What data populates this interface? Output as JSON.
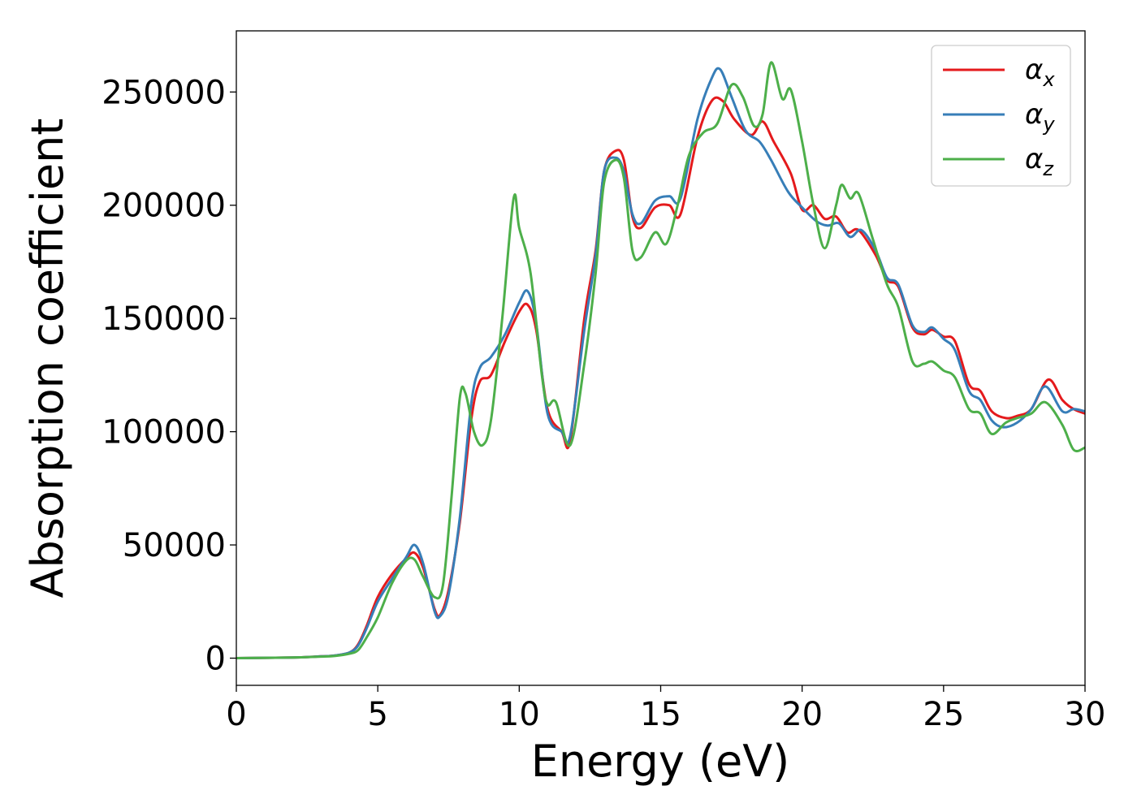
{
  "chart_data": {
    "type": "line",
    "title": "",
    "xlabel": "Energy (eV)",
    "ylabel": "Absorption coefficient",
    "xlim": [
      0,
      30
    ],
    "ylim": [
      -12000,
      277000
    ],
    "xticks": [
      "0",
      "5",
      "10",
      "15",
      "20",
      "25",
      "30"
    ],
    "yticks": [
      "0",
      "50000",
      "100000",
      "150000",
      "200000",
      "250000"
    ],
    "grid": false,
    "legend_position": "top-right",
    "series": [
      {
        "name": "αx",
        "label_base": "α",
        "label_sub": "x",
        "color": "#e41a1c",
        "points": [
          [
            0,
            0
          ],
          [
            2,
            300
          ],
          [
            3,
            800
          ],
          [
            3.5,
            1200
          ],
          [
            4,
            2500
          ],
          [
            4.3,
            6000
          ],
          [
            4.6,
            14000
          ],
          [
            5,
            27000
          ],
          [
            5.5,
            37000
          ],
          [
            6,
            44000
          ],
          [
            6.3,
            46500
          ],
          [
            6.6,
            40000
          ],
          [
            7,
            22000
          ],
          [
            7.2,
            19000
          ],
          [
            7.5,
            30000
          ],
          [
            7.9,
            60000
          ],
          [
            8.3,
            105000
          ],
          [
            8.6,
            122000
          ],
          [
            9,
            125000
          ],
          [
            9.5,
            140000
          ],
          [
            10,
            153000
          ],
          [
            10.3,
            156000
          ],
          [
            10.6,
            145000
          ],
          [
            11,
            110000
          ],
          [
            11.5,
            100000
          ],
          [
            11.8,
            96000
          ],
          [
            12.3,
            150000
          ],
          [
            12.7,
            180000
          ],
          [
            13,
            215000
          ],
          [
            13.4,
            224000
          ],
          [
            13.7,
            220000
          ],
          [
            14,
            195000
          ],
          [
            14.3,
            190000
          ],
          [
            14.8,
            199000
          ],
          [
            15.3,
            200000
          ],
          [
            15.7,
            196000
          ],
          [
            16.3,
            230000
          ],
          [
            16.8,
            246000
          ],
          [
            17.2,
            246000
          ],
          [
            17.6,
            238000
          ],
          [
            18.2,
            231000
          ],
          [
            18.6,
            237000
          ],
          [
            19,
            228000
          ],
          [
            19.6,
            214000
          ],
          [
            20,
            198000
          ],
          [
            20.4,
            200000
          ],
          [
            20.8,
            194000
          ],
          [
            21.2,
            195000
          ],
          [
            21.6,
            188000
          ],
          [
            22,
            189000
          ],
          [
            22.6,
            178000
          ],
          [
            23,
            167000
          ],
          [
            23.4,
            164000
          ],
          [
            23.9,
            146000
          ],
          [
            24.3,
            143000
          ],
          [
            24.6,
            145000
          ],
          [
            25,
            142000
          ],
          [
            25.4,
            140000
          ],
          [
            25.9,
            121000
          ],
          [
            26.3,
            118000
          ],
          [
            26.7,
            109000
          ],
          [
            27.2,
            106000
          ],
          [
            27.6,
            107000
          ],
          [
            28.1,
            110000
          ],
          [
            28.7,
            123000
          ],
          [
            29.2,
            114000
          ],
          [
            29.6,
            110000
          ],
          [
            30,
            108000
          ]
        ]
      },
      {
        "name": "αy",
        "label_base": "α",
        "label_sub": "y",
        "color": "#377eb8",
        "points": [
          [
            0,
            0
          ],
          [
            2,
            300
          ],
          [
            3,
            800
          ],
          [
            3.5,
            1200
          ],
          [
            4,
            2500
          ],
          [
            4.3,
            5500
          ],
          [
            4.6,
            13000
          ],
          [
            5,
            25000
          ],
          [
            5.5,
            35000
          ],
          [
            6,
            44500
          ],
          [
            6.3,
            50000
          ],
          [
            6.6,
            42000
          ],
          [
            7,
            21000
          ],
          [
            7.2,
            18500
          ],
          [
            7.5,
            28000
          ],
          [
            7.9,
            62000
          ],
          [
            8.3,
            112000
          ],
          [
            8.6,
            128000
          ],
          [
            9,
            133000
          ],
          [
            9.5,
            143000
          ],
          [
            10,
            157000
          ],
          [
            10.3,
            162000
          ],
          [
            10.6,
            148000
          ],
          [
            11,
            108000
          ],
          [
            11.5,
            100000
          ],
          [
            11.8,
            98000
          ],
          [
            12.3,
            145000
          ],
          [
            12.7,
            178000
          ],
          [
            13,
            215000
          ],
          [
            13.4,
            221000
          ],
          [
            13.7,
            215000
          ],
          [
            14,
            196000
          ],
          [
            14.3,
            192000
          ],
          [
            14.8,
            202000
          ],
          [
            15.3,
            204000
          ],
          [
            15.7,
            203000
          ],
          [
            16.3,
            238000
          ],
          [
            16.8,
            256000
          ],
          [
            17.1,
            260000
          ],
          [
            17.5,
            248000
          ],
          [
            18,
            233000
          ],
          [
            18.5,
            228000
          ],
          [
            18.9,
            220000
          ],
          [
            19.5,
            206000
          ],
          [
            20,
            199000
          ],
          [
            20.5,
            193000
          ],
          [
            20.9,
            191000
          ],
          [
            21.3,
            192000
          ],
          [
            21.7,
            186000
          ],
          [
            22.1,
            189000
          ],
          [
            22.6,
            180000
          ],
          [
            23,
            168000
          ],
          [
            23.4,
            165000
          ],
          [
            23.9,
            147000
          ],
          [
            24.3,
            144000
          ],
          [
            24.6,
            146000
          ],
          [
            25,
            141000
          ],
          [
            25.4,
            136000
          ],
          [
            25.9,
            118000
          ],
          [
            26.3,
            114000
          ],
          [
            26.7,
            105000
          ],
          [
            27.1,
            102000
          ],
          [
            27.6,
            104000
          ],
          [
            28.1,
            110000
          ],
          [
            28.6,
            120000
          ],
          [
            29.2,
            109000
          ],
          [
            29.6,
            110000
          ],
          [
            30,
            109000
          ]
        ]
      },
      {
        "name": "αz",
        "label_base": "α",
        "label_sub": "z",
        "color": "#4daf4a",
        "points": [
          [
            0,
            0
          ],
          [
            2,
            300
          ],
          [
            3,
            700
          ],
          [
            3.5,
            1000
          ],
          [
            4,
            2000
          ],
          [
            4.3,
            3500
          ],
          [
            4.6,
            9000
          ],
          [
            5,
            18000
          ],
          [
            5.5,
            33000
          ],
          [
            6,
            43000
          ],
          [
            6.3,
            43500
          ],
          [
            6.6,
            36000
          ],
          [
            7,
            27000
          ],
          [
            7.3,
            32000
          ],
          [
            7.6,
            70000
          ],
          [
            7.9,
            115000
          ],
          [
            8.1,
            117000
          ],
          [
            8.4,
            100000
          ],
          [
            8.7,
            94000
          ],
          [
            9,
            105000
          ],
          [
            9.4,
            150000
          ],
          [
            9.8,
            203000
          ],
          [
            10,
            190000
          ],
          [
            10.4,
            170000
          ],
          [
            10.8,
            125000
          ],
          [
            11,
            112000
          ],
          [
            11.3,
            113000
          ],
          [
            11.8,
            94000
          ],
          [
            12.3,
            130000
          ],
          [
            12.7,
            170000
          ],
          [
            13,
            210000
          ],
          [
            13.4,
            220000
          ],
          [
            13.7,
            212000
          ],
          [
            14,
            180000
          ],
          [
            14.3,
            177000
          ],
          [
            14.8,
            188000
          ],
          [
            15.2,
            183000
          ],
          [
            15.6,
            200000
          ],
          [
            16,
            222000
          ],
          [
            16.5,
            232000
          ],
          [
            17,
            236000
          ],
          [
            17.5,
            253000
          ],
          [
            17.9,
            248000
          ],
          [
            18.3,
            235000
          ],
          [
            18.6,
            240000
          ],
          [
            18.9,
            263000
          ],
          [
            19.3,
            247000
          ],
          [
            19.6,
            251000
          ],
          [
            20,
            228000
          ],
          [
            20.4,
            200000
          ],
          [
            20.8,
            181000
          ],
          [
            21.2,
            200000
          ],
          [
            21.4,
            209000
          ],
          [
            21.7,
            203000
          ],
          [
            22,
            205000
          ],
          [
            22.5,
            185000
          ],
          [
            23,
            165000
          ],
          [
            23.4,
            155000
          ],
          [
            23.9,
            131000
          ],
          [
            24.3,
            130000
          ],
          [
            24.6,
            131000
          ],
          [
            25,
            127000
          ],
          [
            25.4,
            124000
          ],
          [
            25.9,
            110000
          ],
          [
            26.3,
            108000
          ],
          [
            26.7,
            99000
          ],
          [
            27.2,
            104000
          ],
          [
            27.6,
            106000
          ],
          [
            28.1,
            108000
          ],
          [
            28.6,
            113000
          ],
          [
            29.2,
            103000
          ],
          [
            29.6,
            92000
          ],
          [
            30,
            93000
          ]
        ]
      }
    ]
  }
}
